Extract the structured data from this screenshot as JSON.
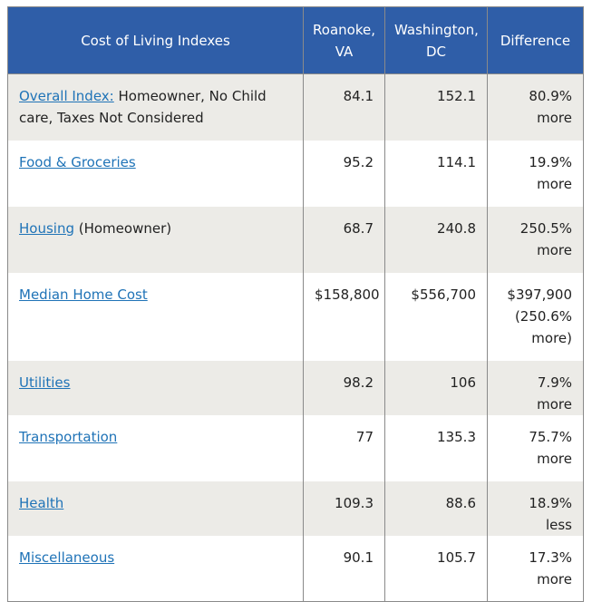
{
  "headers": [
    "Cost of Living Indexes",
    "Roanoke, VA",
    "Washington, DC",
    "Difference"
  ],
  "rows": [
    {
      "link": "Overall Index:",
      "suffix": " Homeowner, No Child care, Taxes Not Considered",
      "v1": "84.1",
      "v2": "152.1",
      "diff": "80.9% more"
    },
    {
      "link": "Food & Groceries",
      "suffix": "",
      "v1": "95.2",
      "v2": "114.1",
      "diff": "19.9% more"
    },
    {
      "link": "Housing",
      "suffix": " (Homeowner)",
      "v1": "68.7",
      "v2": "240.8",
      "diff": "250.5% more"
    },
    {
      "link": "Median Home Cost",
      "suffix": "",
      "v1": "$158,800",
      "v2": "$556,700",
      "diff": "$397,900 (250.6% more)"
    },
    {
      "link": "Utilities",
      "suffix": "",
      "v1": "98.2",
      "v2": "106",
      "diff": "7.9% more"
    },
    {
      "link": "Transportation",
      "suffix": "",
      "v1": "77",
      "v2": "135.3",
      "diff": "75.7% more"
    },
    {
      "link": "Health",
      "suffix": "",
      "v1": "109.3",
      "v2": "88.6",
      "diff": "18.9% less"
    },
    {
      "link": "Miscellaneous",
      "suffix": "",
      "v1": "90.1",
      "v2": "105.7",
      "diff": "17.3% more"
    }
  ]
}
